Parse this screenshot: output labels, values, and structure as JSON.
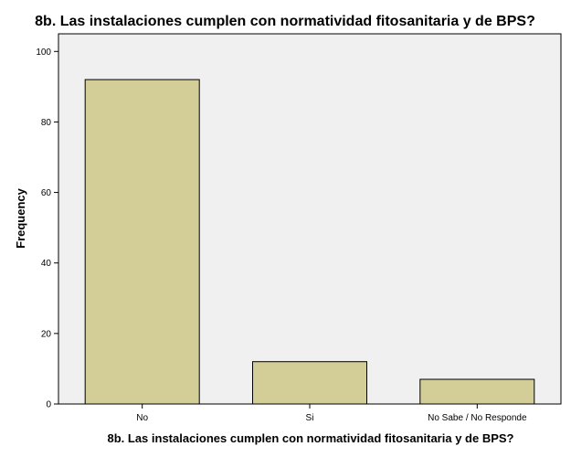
{
  "colors": {
    "plot_background": "#f0f0f0",
    "bar_fill": "#d3ce97",
    "bar_stroke": "#000000",
    "axis": "#000000"
  },
  "chart_data": {
    "type": "bar",
    "title": "8b. Las instalaciones cumplen con normatividad fitosanitaria y de BPS?",
    "xlabel": "8b. Las instalaciones cumplen con normatividad fitosanitaria y de BPS?",
    "ylabel": "Frequency",
    "categories": [
      "No",
      "Si",
      "No Sabe / No Responde"
    ],
    "values": [
      92,
      12,
      7
    ],
    "ylim": [
      0,
      105
    ],
    "yticks": [
      0,
      20,
      40,
      60,
      80,
      100
    ],
    "grid": false,
    "legend": "none"
  }
}
